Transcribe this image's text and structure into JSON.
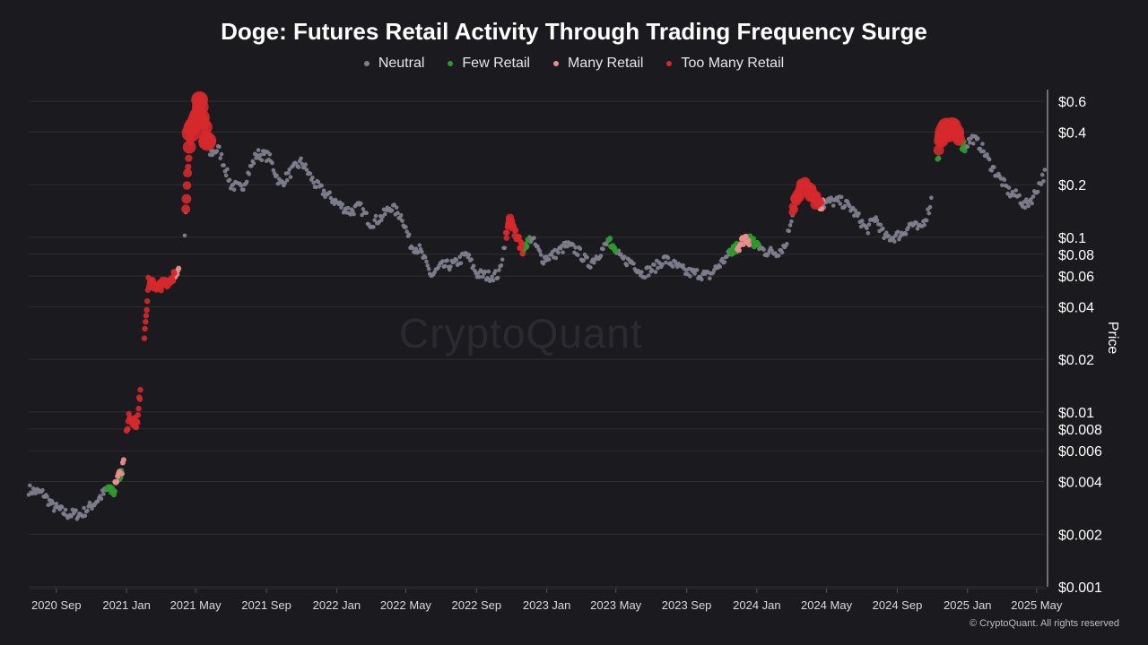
{
  "chart_data": {
    "type": "scatter",
    "title": "Doge: Futures Retail Activity Through Trading Frequency Surge",
    "ylabel": "Price",
    "y_scale": "log",
    "ylim": [
      0.001,
      0.7
    ],
    "y_ticks": [
      {
        "value": 0.001,
        "label": "$0.001"
      },
      {
        "value": 0.002,
        "label": "$0.002"
      },
      {
        "value": 0.004,
        "label": "$0.004"
      },
      {
        "value": 0.006,
        "label": "$0.006"
      },
      {
        "value": 0.008,
        "label": "$0.008"
      },
      {
        "value": 0.01,
        "label": "$0.01"
      },
      {
        "value": 0.02,
        "label": "$0.02"
      },
      {
        "value": 0.04,
        "label": "$0.04"
      },
      {
        "value": 0.06,
        "label": "$0.06"
      },
      {
        "value": 0.08,
        "label": "$0.08"
      },
      {
        "value": 0.1,
        "label": "$0.1"
      },
      {
        "value": 0.2,
        "label": "$0.2"
      },
      {
        "value": 0.4,
        "label": "$0.4"
      },
      {
        "value": 0.6,
        "label": "$0.6"
      }
    ],
    "x_ticks": [
      {
        "value": "2020-09-01",
        "label": "2020 Sep"
      },
      {
        "value": "2021-01-01",
        "label": "2021 Jan"
      },
      {
        "value": "2021-05-01",
        "label": "2021 May"
      },
      {
        "value": "2021-09-01",
        "label": "2021 Sep"
      },
      {
        "value": "2022-01-01",
        "label": "2022 Jan"
      },
      {
        "value": "2022-05-01",
        "label": "2022 May"
      },
      {
        "value": "2022-09-01",
        "label": "2022 Sep"
      },
      {
        "value": "2023-01-01",
        "label": "2023 Jan"
      },
      {
        "value": "2023-05-01",
        "label": "2023 May"
      },
      {
        "value": "2023-09-01",
        "label": "2023 Sep"
      },
      {
        "value": "2024-01-01",
        "label": "2024 Jan"
      },
      {
        "value": "2024-05-01",
        "label": "2024 May"
      },
      {
        "value": "2024-09-01",
        "label": "2024 Sep"
      },
      {
        "value": "2025-01-01",
        "label": "2025 Jan"
      },
      {
        "value": "2025-05-01",
        "label": "2025 May"
      }
    ],
    "xlim": [
      "2020-07-15",
      "2025-05-20"
    ],
    "price_path": [
      [
        "2020-07-15",
        0.0036
      ],
      [
        "2020-08-10",
        0.0034
      ],
      [
        "2020-08-25",
        0.0029
      ],
      [
        "2020-09-20",
        0.0026
      ],
      [
        "2020-10-15",
        0.0026
      ],
      [
        "2020-11-10",
        0.0031
      ],
      [
        "2020-11-25",
        0.0035
      ],
      [
        "2020-12-10",
        0.0036
      ],
      [
        "2020-12-25",
        0.0048
      ],
      [
        "2021-01-05",
        0.0095
      ],
      [
        "2021-01-20",
        0.0085
      ],
      [
        "2021-02-08",
        0.055
      ],
      [
        "2021-02-25",
        0.052
      ],
      [
        "2021-03-20",
        0.058
      ],
      [
        "2021-04-10",
        0.075
      ],
      [
        "2021-04-20",
        0.35
      ],
      [
        "2021-05-08",
        0.62
      ],
      [
        "2021-05-25",
        0.3
      ],
      [
        "2021-06-10",
        0.32
      ],
      [
        "2021-07-01",
        0.2
      ],
      [
        "2021-07-20",
        0.19
      ],
      [
        "2021-08-15",
        0.3
      ],
      [
        "2021-09-05",
        0.29
      ],
      [
        "2021-09-25",
        0.2
      ],
      [
        "2021-10-15",
        0.24
      ],
      [
        "2021-11-01",
        0.27
      ],
      [
        "2021-11-25",
        0.2
      ],
      [
        "2021-12-20",
        0.17
      ],
      [
        "2022-01-10",
        0.15
      ],
      [
        "2022-01-25",
        0.14
      ],
      [
        "2022-02-10",
        0.15
      ],
      [
        "2022-03-01",
        0.12
      ],
      [
        "2022-03-20",
        0.13
      ],
      [
        "2022-04-05",
        0.15
      ],
      [
        "2022-04-25",
        0.13
      ],
      [
        "2022-05-10",
        0.09
      ],
      [
        "2022-05-25",
        0.085
      ],
      [
        "2022-06-15",
        0.06
      ],
      [
        "2022-07-01",
        0.068
      ],
      [
        "2022-07-25",
        0.07
      ],
      [
        "2022-08-15",
        0.08
      ],
      [
        "2022-09-01",
        0.062
      ],
      [
        "2022-09-20",
        0.06
      ],
      [
        "2022-10-10",
        0.061
      ],
      [
        "2022-10-28",
        0.13
      ],
      [
        "2022-11-05",
        0.11
      ],
      [
        "2022-11-20",
        0.085
      ],
      [
        "2022-12-05",
        0.1
      ],
      [
        "2022-12-25",
        0.075
      ],
      [
        "2023-01-15",
        0.08
      ],
      [
        "2023-02-05",
        0.09
      ],
      [
        "2023-02-25",
        0.083
      ],
      [
        "2023-03-15",
        0.07
      ],
      [
        "2023-04-01",
        0.08
      ],
      [
        "2023-04-20",
        0.095
      ],
      [
        "2023-05-10",
        0.075
      ],
      [
        "2023-05-30",
        0.072
      ],
      [
        "2023-06-15",
        0.062
      ],
      [
        "2023-07-05",
        0.066
      ],
      [
        "2023-07-25",
        0.075
      ],
      [
        "2023-08-15",
        0.068
      ],
      [
        "2023-09-01",
        0.063
      ],
      [
        "2023-09-20",
        0.062
      ],
      [
        "2023-10-10",
        0.06
      ],
      [
        "2023-10-25",
        0.068
      ],
      [
        "2023-11-10",
        0.077
      ],
      [
        "2023-11-25",
        0.085
      ],
      [
        "2023-12-12",
        0.1
      ],
      [
        "2023-12-28",
        0.092
      ],
      [
        "2024-01-15",
        0.083
      ],
      [
        "2024-02-05",
        0.082
      ],
      [
        "2024-02-20",
        0.09
      ],
      [
        "2024-03-05",
        0.15
      ],
      [
        "2024-03-20",
        0.2
      ],
      [
        "2024-04-05",
        0.18
      ],
      [
        "2024-04-20",
        0.15
      ],
      [
        "2024-05-05",
        0.16
      ],
      [
        "2024-05-25",
        0.16
      ],
      [
        "2024-06-10",
        0.15
      ],
      [
        "2024-06-25",
        0.13
      ],
      [
        "2024-07-10",
        0.11
      ],
      [
        "2024-07-25",
        0.13
      ],
      [
        "2024-08-10",
        0.1
      ],
      [
        "2024-08-25",
        0.1
      ],
      [
        "2024-09-10",
        0.105
      ],
      [
        "2024-09-25",
        0.12
      ],
      [
        "2024-10-10",
        0.11
      ],
      [
        "2024-10-25",
        0.14
      ],
      [
        "2024-11-05",
        0.2
      ],
      [
        "2024-11-15",
        0.38
      ],
      [
        "2024-12-05",
        0.43
      ],
      [
        "2024-12-25",
        0.33
      ],
      [
        "2025-01-10",
        0.37
      ],
      [
        "2025-01-25",
        0.33
      ],
      [
        "2025-02-10",
        0.26
      ],
      [
        "2025-02-25",
        0.22
      ],
      [
        "2025-03-15",
        0.18
      ],
      [
        "2025-04-01",
        0.17
      ],
      [
        "2025-04-10",
        0.15
      ],
      [
        "2025-04-25",
        0.17
      ],
      [
        "2025-05-05",
        0.2
      ],
      [
        "2025-05-15",
        0.23
      ]
    ],
    "series": [
      {
        "name": "Neutral",
        "color": "#7e7d8c",
        "ranges": [
          [
            "2020-07-15",
            "2020-11-28"
          ],
          [
            "2021-04-12",
            "2021-04-14"
          ],
          [
            "2021-05-22",
            "2022-10-22"
          ],
          [
            "2022-11-30",
            "2023-04-18"
          ],
          [
            "2023-05-02",
            "2023-11-15"
          ],
          [
            "2024-01-05",
            "2024-03-03"
          ],
          [
            "2024-04-25",
            "2024-10-30"
          ],
          [
            "2024-12-28",
            "2025-05-15"
          ]
        ]
      },
      {
        "name": "Few Retail",
        "color": "#2d9a2d",
        "ranges": [
          [
            "2020-11-28",
            "2020-12-12"
          ],
          [
            "2020-12-20",
            "2020-12-24"
          ],
          [
            "2022-11-20",
            "2022-11-30"
          ],
          [
            "2023-04-18",
            "2023-05-02"
          ],
          [
            "2023-11-15",
            "2023-11-28"
          ],
          [
            "2023-12-20",
            "2024-01-05"
          ],
          [
            "2024-11-10",
            "2024-11-12"
          ],
          [
            "2024-12-18",
            "2024-12-28"
          ]
        ]
      },
      {
        "name": "Many Retail",
        "color": "#e88e8e",
        "ranges": [
          [
            "2020-12-12",
            "2020-12-20"
          ],
          [
            "2020-12-24",
            "2020-12-28"
          ],
          [
            "2021-03-25",
            "2021-04-02"
          ],
          [
            "2023-11-28",
            "2023-12-20"
          ],
          [
            "2024-04-20",
            "2024-04-25"
          ]
        ]
      },
      {
        "name": "Too Many Retail",
        "color": "#d6292c",
        "ranges": [
          [
            "2021-01-01",
            "2021-01-25"
          ],
          [
            "2021-02-01",
            "2021-03-25"
          ],
          [
            "2021-04-14",
            "2021-05-22"
          ],
          [
            "2022-10-22",
            "2022-11-20"
          ],
          [
            "2024-03-03",
            "2024-04-20"
          ],
          [
            "2024-11-12",
            "2024-12-18"
          ]
        ]
      }
    ],
    "legend_position": "top-center",
    "grid": true,
    "watermark": "CryptoQuant",
    "copyright": "© CryptoQuant. All rights reserved"
  }
}
